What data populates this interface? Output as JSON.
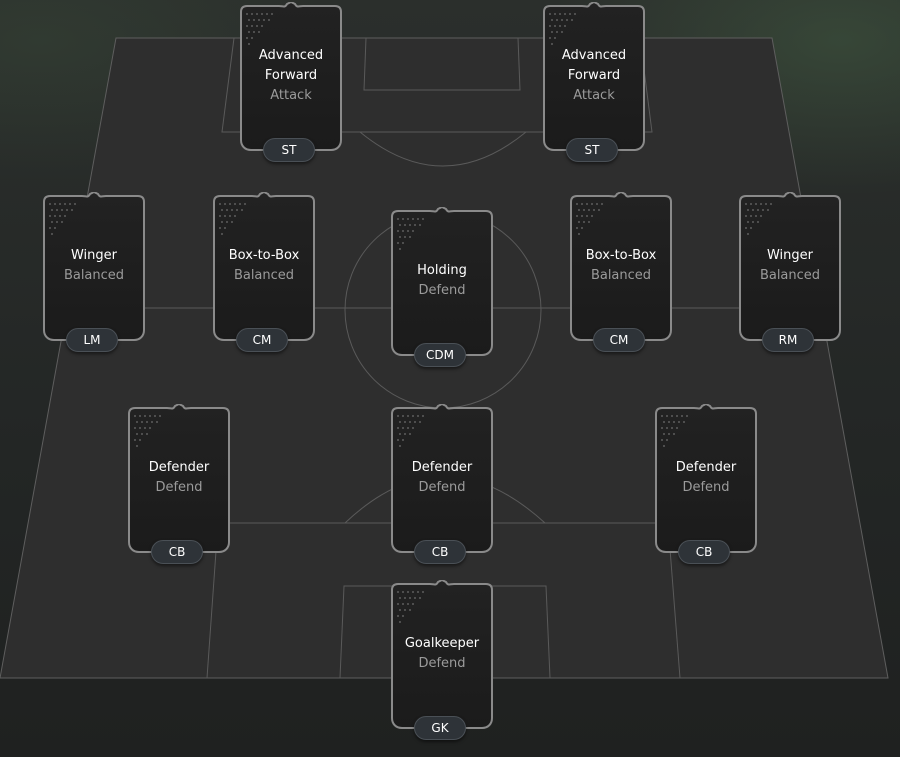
{
  "pitch": {
    "background": "#2a2a2a",
    "line_color": "#6a6a6a"
  },
  "players": [
    {
      "id": "st-left",
      "role_lines": [
        "Advanced",
        "Forward"
      ],
      "duty": "Attack",
      "position": "ST"
    },
    {
      "id": "st-right",
      "role_lines": [
        "Advanced",
        "Forward"
      ],
      "duty": "Attack",
      "position": "ST"
    },
    {
      "id": "lm",
      "role_lines": [
        "Winger"
      ],
      "duty": "Balanced",
      "position": "LM"
    },
    {
      "id": "cm-left",
      "role_lines": [
        "Box-to-Box"
      ],
      "duty": "Balanced",
      "position": "CM"
    },
    {
      "id": "cdm",
      "role_lines": [
        "Holding"
      ],
      "duty": "Defend",
      "position": "CDM"
    },
    {
      "id": "cm-right",
      "role_lines": [
        "Box-to-Box"
      ],
      "duty": "Balanced",
      "position": "CM"
    },
    {
      "id": "rm",
      "role_lines": [
        "Winger"
      ],
      "duty": "Balanced",
      "position": "RM"
    },
    {
      "id": "cb-left",
      "role_lines": [
        "Defender"
      ],
      "duty": "Defend",
      "position": "CB"
    },
    {
      "id": "cb-center",
      "role_lines": [
        "Defender"
      ],
      "duty": "Defend",
      "position": "CB"
    },
    {
      "id": "cb-right",
      "role_lines": [
        "Defender"
      ],
      "duty": "Defend",
      "position": "CB"
    },
    {
      "id": "gk",
      "role_lines": [
        "Goalkeeper"
      ],
      "duty": "Defend",
      "position": "GK"
    }
  ]
}
